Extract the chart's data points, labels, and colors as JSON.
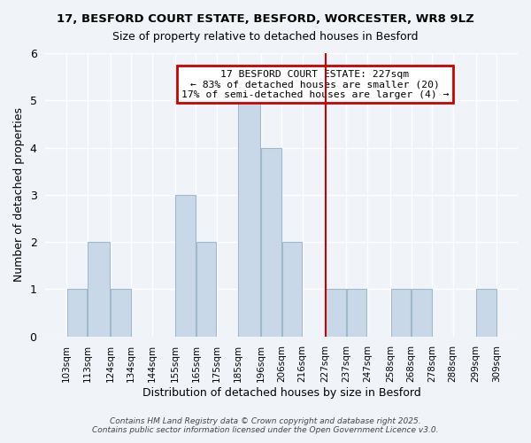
{
  "title1": "17, BESFORD COURT ESTATE, BESFORD, WORCESTER, WR8 9LZ",
  "title2": "Size of property relative to detached houses in Besford",
  "xlabel": "Distribution of detached houses by size in Besford",
  "ylabel": "Number of detached properties",
  "bar_edges": [
    103,
    113,
    124,
    134,
    144,
    155,
    165,
    175,
    185,
    196,
    206,
    216,
    227,
    237,
    247,
    258,
    268,
    278,
    288,
    299,
    309
  ],
  "bar_heights": [
    1,
    2,
    1,
    0,
    0,
    3,
    2,
    0,
    5,
    4,
    2,
    0,
    1,
    1,
    0,
    1,
    1,
    0,
    0,
    1
  ],
  "bar_color": "#c8d8e8",
  "bar_edgecolor": "#a0b8cc",
  "vline_x": 227,
  "vline_color": "#cc0000",
  "ylim": [
    0,
    6
  ],
  "yticks": [
    0,
    1,
    2,
    3,
    4,
    5,
    6
  ],
  "annotation_title": "17 BESFORD COURT ESTATE: 227sqm",
  "annotation_line2": "← 83% of detached houses are smaller (20)",
  "annotation_line3": "17% of semi-detached houses are larger (4) →",
  "annotation_box_color": "#cc0000",
  "annotation_bg": "#ffffff",
  "footer1": "Contains HM Land Registry data © Crown copyright and database right 2025.",
  "footer2": "Contains public sector information licensed under the Open Government Licence v3.0.",
  "bg_color": "#f0f4f8",
  "grid_color": "#ffffff"
}
